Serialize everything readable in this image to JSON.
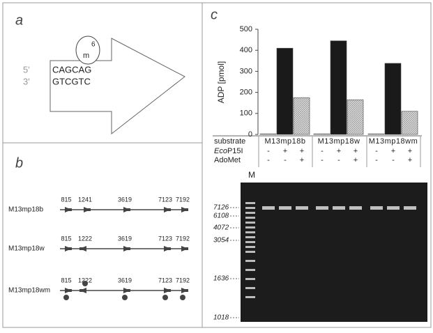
{
  "panel_a": {
    "label": "a",
    "five": "5'",
    "three": "3'",
    "top": "CAGCAG",
    "bottom": "GTCGTC",
    "methyl": "m",
    "methyl_sup": "6"
  },
  "panel_b": {
    "label": "b",
    "constructs": [
      {
        "name": "M13mp18b",
        "sites": [
          "815",
          "1241",
          "3619",
          "7123",
          "7192"
        ]
      },
      {
        "name": "M13mp18w",
        "sites": [
          "815",
          "1222",
          "3619",
          "7123",
          "7192"
        ]
      },
      {
        "name": "M13mp18wm",
        "sites": [
          "815",
          "1222",
          "3619",
          "7123",
          "7192"
        ]
      }
    ]
  },
  "chart_data": {
    "type": "bar",
    "label": "c",
    "ylabel": "ADP [pmol]",
    "categories": [
      "M13mp18b",
      "M13mp18w",
      "M13mp18wm"
    ],
    "series": [
      {
        "color": "#f4f4f4",
        "values": [
          3,
          3,
          3
        ]
      },
      {
        "color": "#1a1a1a",
        "values": [
          410,
          445,
          338
        ]
      },
      {
        "color": "#c8c8c8",
        "values": [
          175,
          165,
          110
        ]
      }
    ],
    "ylim": [
      0,
      500
    ],
    "yticks": [
      0,
      100,
      200,
      300,
      400,
      500
    ]
  },
  "table": {
    "substrate": "substrate",
    "enzyme_italic": "Eco",
    "enzyme_rest": "P15I",
    "cofactor": "AdoMet",
    "enzyme_marks": [
      "-",
      "+",
      "+"
    ],
    "cofactor_marks": [
      "-",
      "-",
      "+"
    ]
  },
  "gel": {
    "lane_label": "M",
    "markers": [
      "7126",
      "6108",
      "4072",
      "3054",
      "1636",
      "1018"
    ]
  }
}
